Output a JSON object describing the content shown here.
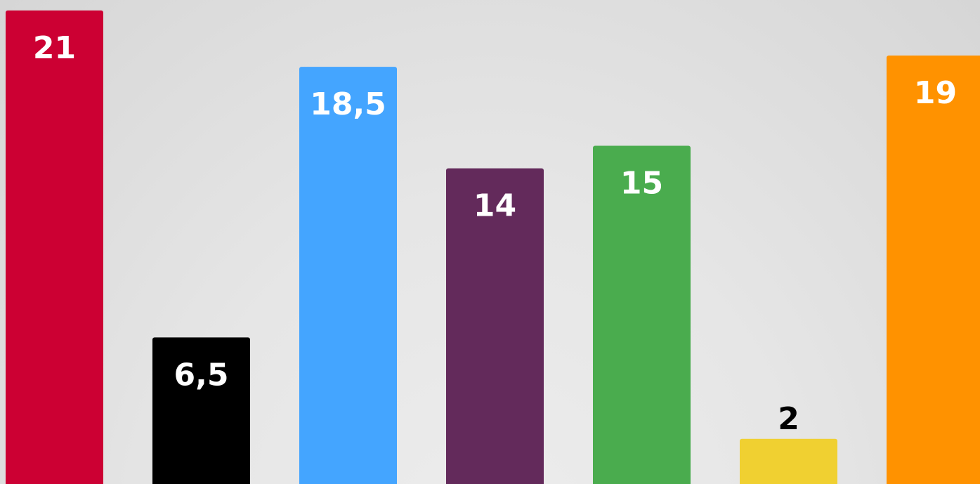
{
  "chart_data": {
    "type": "bar",
    "categories": [
      "",
      "",
      "",
      "",
      "",
      "",
      ""
    ],
    "values": [
      21,
      6.5,
      18.5,
      14,
      15,
      2,
      19
    ],
    "labels": [
      "21",
      "6,5",
      "18,5",
      "14",
      "15",
      "2",
      "19"
    ],
    "colors": [
      "#cc0033",
      "#000000",
      "#44a5ff",
      "#632a5b",
      "#4aac4e",
      "#f0d031",
      "#ff9200"
    ],
    "label_colors": [
      "#ffffff",
      "#ffffff",
      "#ffffff",
      "#ffffff",
      "#ffffff",
      "#000000",
      "#ffffff"
    ],
    "label_placement": [
      "inside",
      "inside",
      "inside",
      "inside",
      "inside",
      "above",
      "inside"
    ],
    "grid": false,
    "legend": "none"
  }
}
